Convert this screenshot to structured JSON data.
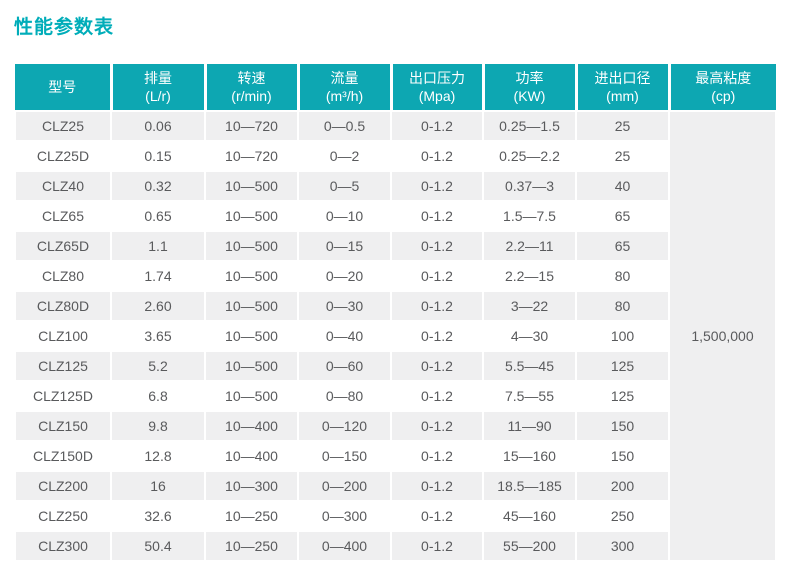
{
  "title": "性能参数表",
  "colors": {
    "header_bg": "#0da7b2",
    "header_text": "#ffffff",
    "title_text": "#00adb9",
    "row_alt_bg": "#efeff0",
    "row_bg": "#ffffff",
    "cell_text": "#595a5c"
  },
  "table": {
    "columns": [
      {
        "name": "型号",
        "unit": ""
      },
      {
        "name": "排量",
        "unit": "(L/r)"
      },
      {
        "name": "转速",
        "unit": "(r/min)"
      },
      {
        "name": "流量",
        "unit": "(m³/h)"
      },
      {
        "name": "出口压力",
        "unit": "(Mpa)"
      },
      {
        "name": "功率",
        "unit": "(KW)"
      },
      {
        "name": "进出口径",
        "unit": "(mm)"
      },
      {
        "name": "最高粘度",
        "unit": "(cp)"
      }
    ],
    "max_viscosity": "1,500,000",
    "rows": [
      [
        "CLZ25",
        "0.06",
        "10—720",
        "0—0.5",
        "0-1.2",
        "0.25—1.5",
        "25"
      ],
      [
        "CLZ25D",
        "0.15",
        "10—720",
        "0—2",
        "0-1.2",
        "0.25—2.2",
        "25"
      ],
      [
        "CLZ40",
        "0.32",
        "10—500",
        "0—5",
        "0-1.2",
        "0.37—3",
        "40"
      ],
      [
        "CLZ65",
        "0.65",
        "10—500",
        "0—10",
        "0-1.2",
        "1.5—7.5",
        "65"
      ],
      [
        "CLZ65D",
        "1.1",
        "10—500",
        "0—15",
        "0-1.2",
        "2.2—11",
        "65"
      ],
      [
        "CLZ80",
        "1.74",
        "10—500",
        "0—20",
        "0-1.2",
        "2.2—15",
        "80"
      ],
      [
        "CLZ80D",
        "2.60",
        "10—500",
        "0—30",
        "0-1.2",
        "3—22",
        "80"
      ],
      [
        "CLZ100",
        "3.65",
        "10—500",
        "0—40",
        "0-1.2",
        "4—30",
        "100"
      ],
      [
        "CLZ125",
        "5.2",
        "10—500",
        "0—60",
        "0-1.2",
        "5.5—45",
        "125"
      ],
      [
        "CLZ125D",
        "6.8",
        "10—500",
        "0—80",
        "0-1.2",
        "7.5—55",
        "125"
      ],
      [
        "CLZ150",
        "9.8",
        "10—400",
        "0—120",
        "0-1.2",
        "11—90",
        "150"
      ],
      [
        "CLZ150D",
        "12.8",
        "10—400",
        "0—150",
        "0-1.2",
        "15—160",
        "150"
      ],
      [
        "CLZ200",
        "16",
        "10—300",
        "0—200",
        "0-1.2",
        "18.5—185",
        "200"
      ],
      [
        "CLZ250",
        "32.6",
        "10—250",
        "0—300",
        "0-1.2",
        "45—160",
        "250"
      ],
      [
        "CLZ300",
        "50.4",
        "10—250",
        "0—400",
        "0-1.2",
        "55—200",
        "300"
      ]
    ]
  }
}
